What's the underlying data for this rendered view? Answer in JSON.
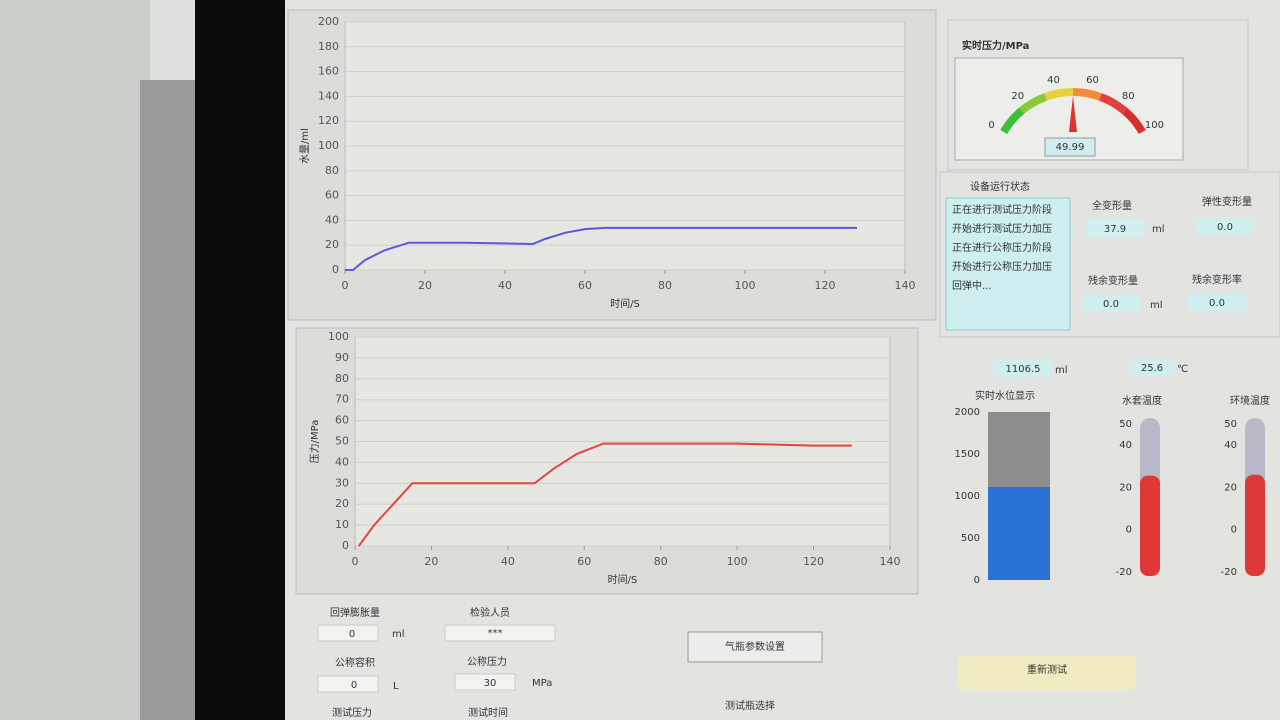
{
  "volume_chart": {
    "type": "line",
    "ylabel": "水量/ml",
    "xlabel": "时间/S",
    "x": [
      0,
      2,
      5,
      10,
      16,
      30,
      47,
      50,
      55,
      60,
      65,
      80,
      100,
      128
    ],
    "values": [
      0,
      0,
      8,
      16,
      22,
      22,
      21,
      25,
      30,
      33,
      34,
      34,
      34,
      34
    ],
    "color": "#5a5ad8",
    "xlim": [
      0,
      140
    ],
    "ylim": [
      0,
      200
    ],
    "xticks": [
      0,
      20,
      40,
      60,
      80,
      100,
      120,
      140
    ],
    "yticks": [
      0,
      20,
      40,
      60,
      80,
      100,
      120,
      140,
      160,
      180,
      200
    ],
    "grid": true
  },
  "pressure_chart": {
    "type": "line",
    "ylabel": "压力/MPa",
    "xlabel": "时间/S",
    "x": [
      1,
      5,
      10,
      15,
      30,
      47,
      52,
      58,
      65,
      80,
      100,
      120,
      130
    ],
    "values": [
      0,
      10,
      20,
      30,
      30,
      30,
      37,
      44,
      49,
      49,
      49,
      48,
      48
    ],
    "color": "#e0483c",
    "xlim": [
      0,
      140
    ],
    "ylim": [
      0,
      100
    ],
    "xticks": [
      0,
      20,
      40,
      60,
      80,
      100,
      120,
      140
    ],
    "yticks": [
      0,
      10,
      20,
      30,
      40,
      50,
      60,
      70,
      80,
      90,
      100
    ],
    "grid": true
  },
  "gauge": {
    "title": "实时压力/MPa",
    "value": 49.99,
    "lim": [
      0,
      100
    ],
    "ticks": [
      0,
      20,
      40,
      60,
      80,
      100
    ]
  },
  "status": {
    "title": "设备运行状态",
    "messages": [
      "正在进行测试压力阶段",
      "开始进行测试压力加压",
      "正在进行公称压力阶段",
      "开始进行公称压力加压",
      "回弹中..."
    ]
  },
  "deformation": {
    "total_label": "全变形量",
    "total": "37.9",
    "total_unit": "ml",
    "elastic_label": "弹性变形量",
    "elastic": "0.0",
    "residual_label": "残余变形量",
    "residual": "0.0",
    "residual_unit": "ml",
    "rate_label": "残余变形率",
    "rate": "0.0"
  },
  "tank": {
    "value": 1106.5,
    "unit": "ml",
    "title": "实时水位显示",
    "lim": [
      0,
      2000
    ],
    "ticks": [
      0,
      500,
      1000,
      1500,
      2000
    ]
  },
  "water_temp": {
    "value": 25.6,
    "unit": "℃",
    "title": "水套温度",
    "lim": [
      -20,
      50
    ],
    "ticks": [
      -20,
      0,
      20,
      40,
      50
    ]
  },
  "env_temp": {
    "value": 26,
    "title": "环境温度",
    "lim": [
      -20,
      50
    ],
    "ticks": [
      -20,
      0,
      20,
      40,
      50
    ]
  },
  "form": {
    "rebound_label": "回弹膨胀量",
    "rebound": "0",
    "rebound_unit": "ml",
    "inspector_label": "检验人员",
    "inspector": "***",
    "volume_label": "公称容积",
    "volume": "0",
    "volume_unit": "L",
    "nominal_label": "公称压力",
    "nominal": "30",
    "nominal_unit": "MPa",
    "test_pressure_label": "测试压力",
    "test_time_label": "测试时间",
    "settings_button": "气瓶参数设置",
    "bottle_label": "测试瓶选择",
    "retest_button": "重新测试"
  }
}
